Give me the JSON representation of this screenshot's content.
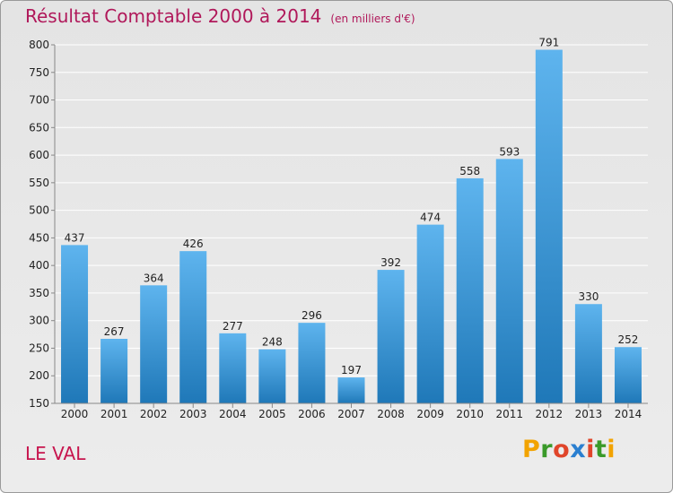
{
  "title": "Résultat Comptable 2000 à 2014",
  "subtitle": "(en milliers d'€)",
  "town": "LE VAL",
  "brand": {
    "letters": [
      "P",
      "r",
      "o",
      "x",
      "i",
      "t",
      "i"
    ],
    "colors": [
      "#f2a300",
      "#3a9a2a",
      "#e0452a",
      "#2a7fd0",
      "#e0452a",
      "#3a9a2a",
      "#f2a300"
    ]
  },
  "colors": {
    "bar_top": "#5eb4ee",
    "bar_bottom": "#1f78b8",
    "title": "#b0185a"
  },
  "chart_data": {
    "type": "bar",
    "title": "Résultat Comptable 2000 à 2014",
    "subtitle": "(en milliers d'€)",
    "categories": [
      "2000",
      "2001",
      "2002",
      "2003",
      "2004",
      "2005",
      "2006",
      "2007",
      "2008",
      "2009",
      "2010",
      "2011",
      "2012",
      "2013",
      "2014"
    ],
    "values": [
      437,
      267,
      364,
      426,
      277,
      248,
      296,
      197,
      392,
      474,
      558,
      593,
      791,
      330,
      252
    ],
    "ylim": [
      150,
      800
    ],
    "yticks": [
      150,
      200,
      250,
      300,
      350,
      400,
      450,
      500,
      550,
      600,
      650,
      700,
      750,
      800
    ],
    "xlabel": "",
    "ylabel": "",
    "grid": true
  }
}
